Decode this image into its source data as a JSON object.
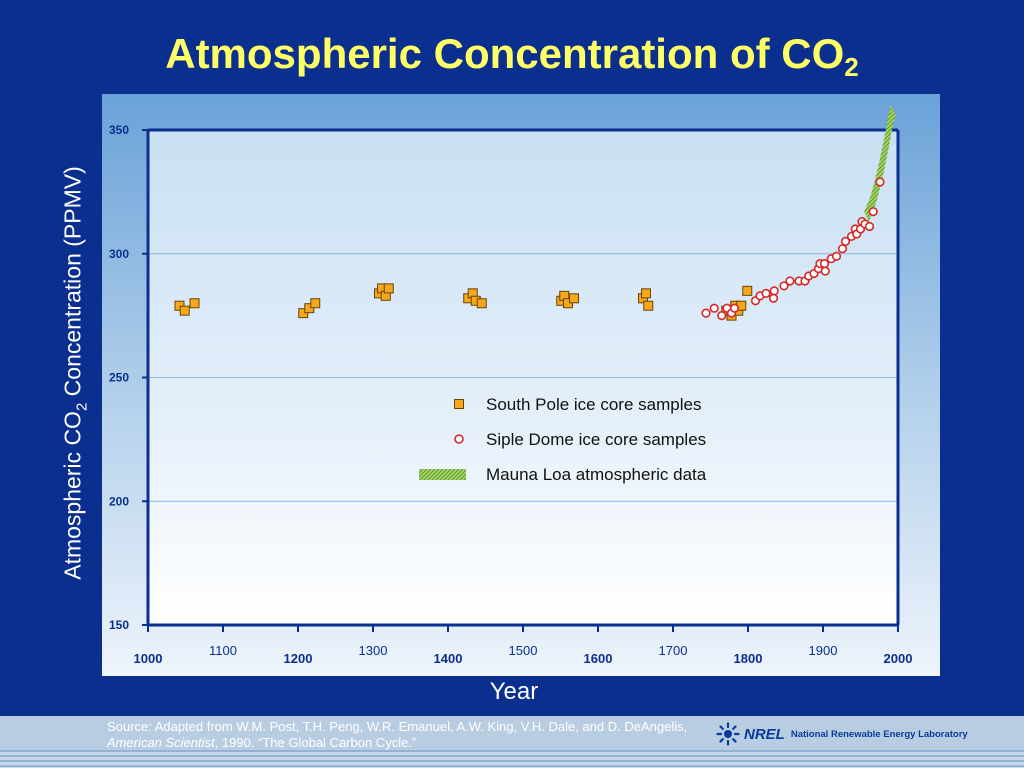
{
  "slide": {
    "title": "Atmospheric Concentration of CO",
    "title_sub": "2",
    "y_axis_label_pre": "Atmospheric CO",
    "y_axis_label_sub": "2",
    "y_axis_label_post": " Concentration (PPMV)",
    "x_axis_label": "Year",
    "source_line1": "Source:  Adapted from W.M. Post, T.H. Peng, W.R. Emanuel, A.W. King, V.H. Dale, and D. DeAngelis,",
    "source_journal": "American Scientist",
    "source_line2_rest": ", 1990.  “The Global Carbon Cycle.”",
    "logo_abbrev": "NREL",
    "logo_text": "National Renewable Energy Laboratory",
    "colors": {
      "background": "#0a2f8f",
      "title": "#ffff66",
      "south_pole": "#f5a81c",
      "siple_dome": "#d62828",
      "mauna_loa": "#8cc23f"
    }
  },
  "chart_data": {
    "type": "scatter",
    "xlim": [
      1000,
      2000
    ],
    "ylim": [
      150,
      350
    ],
    "x_ticks": [
      "1000",
      "1100",
      "1200",
      "1300",
      "1400",
      "1500",
      "1600",
      "1700",
      "1800",
      "1900",
      "2000"
    ],
    "y_ticks": [
      "150",
      "200",
      "250",
      "300",
      "350"
    ],
    "grid": "horizontal",
    "legend_position": "center-right",
    "series": [
      {
        "name": "South Pole ice core samples",
        "marker": "square",
        "x": [
          1042,
          1049,
          1062,
          1207,
          1215,
          1223,
          1308,
          1312,
          1317,
          1321,
          1427,
          1433,
          1437,
          1445,
          1551,
          1555,
          1560,
          1568,
          1660,
          1664,
          1667,
          1771,
          1778,
          1783,
          1787,
          1791,
          1799
        ],
        "y": [
          279,
          277,
          280,
          276,
          278,
          280,
          284,
          286,
          283,
          286,
          282,
          284,
          281,
          280,
          281,
          283,
          280,
          282,
          282,
          284,
          279,
          277,
          275,
          279,
          277,
          279,
          285
        ]
      },
      {
        "name": "Siple Dome ice core samples",
        "marker": "circle",
        "x": [
          1744,
          1755,
          1765,
          1772,
          1778,
          1782,
          1810,
          1816,
          1824,
          1834,
          1835,
          1848,
          1856,
          1868,
          1876,
          1881,
          1888,
          1894,
          1896,
          1902,
          1903,
          1911,
          1918,
          1926,
          1930,
          1938,
          1943,
          1945,
          1950,
          1952,
          1956,
          1962,
          1967,
          1976
        ],
        "y": [
          276,
          278,
          275,
          278,
          276,
          278,
          281,
          283,
          284,
          282,
          285,
          287,
          289,
          289,
          289,
          291,
          292,
          294,
          296,
          296,
          293,
          298,
          299,
          302,
          305,
          307,
          310,
          308,
          310,
          313,
          312,
          311,
          317,
          329
        ]
      },
      {
        "name": "Mauna Loa atmospheric data",
        "marker": "band",
        "x": [
          1958,
          1962,
          1966,
          1970,
          1974,
          1978,
          1982,
          1986,
          1990,
          1994
        ],
        "y": [
          315,
          318,
          321,
          325,
          330,
          335,
          341,
          347,
          354,
          358
        ]
      }
    ]
  }
}
